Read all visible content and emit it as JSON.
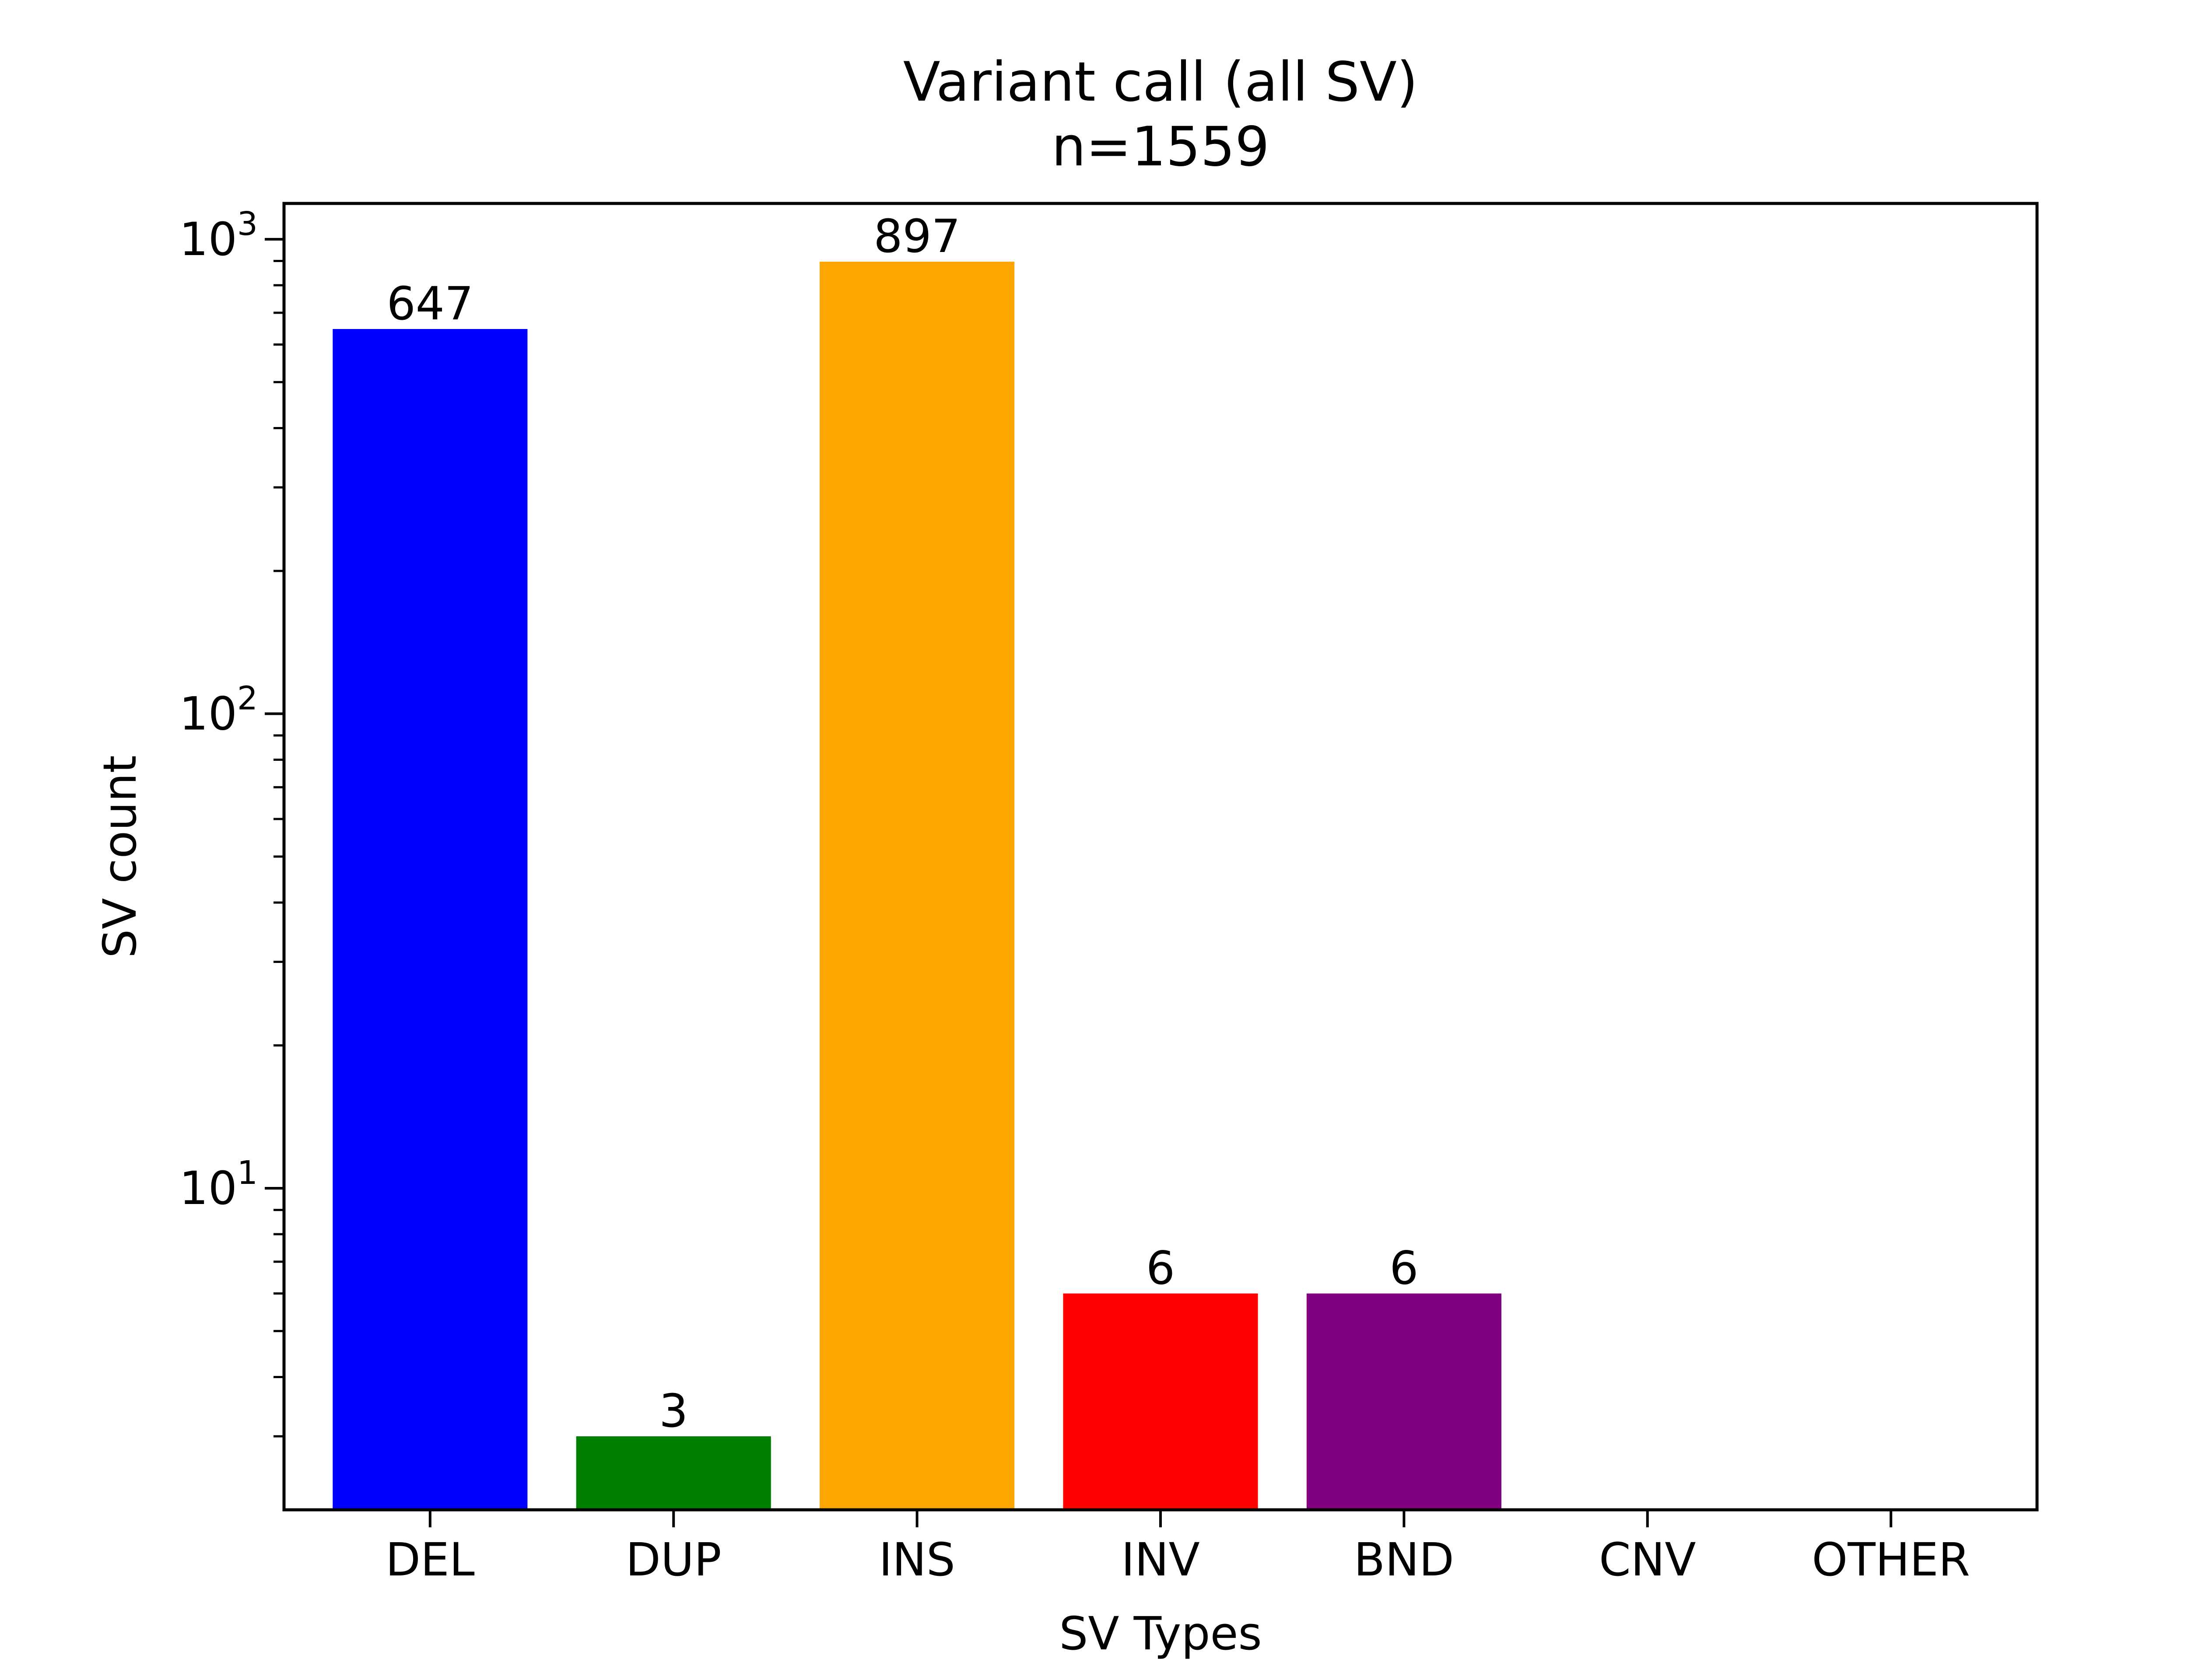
{
  "chart_data": {
    "type": "bar",
    "title": "Variant call (all SV)",
    "subtitle": "n=1559",
    "xlabel": "SV Types",
    "ylabel": "SV count",
    "yscale": "log",
    "ylim": [
      2.1,
      1190
    ],
    "grid": false,
    "categories": [
      "DEL",
      "DUP",
      "INS",
      "INV",
      "BND",
      "CNV",
      "OTHER"
    ],
    "values": [
      647,
      3,
      897,
      6,
      6,
      0,
      0
    ],
    "data_labels": [
      "647",
      "3",
      "897",
      "6",
      "6",
      "",
      ""
    ],
    "colors": [
      "#0000ff",
      "#008000",
      "#ffa500",
      "#ff0000",
      "#800080",
      "#00ffff",
      "#808080"
    ],
    "y_major_ticks": [
      {
        "value": 10,
        "base": "10",
        "exp": "1"
      },
      {
        "value": 100,
        "base": "10",
        "exp": "2"
      },
      {
        "value": 1000,
        "base": "10",
        "exp": "3"
      }
    ],
    "y_minor_ticks": [
      3,
      4,
      5,
      6,
      7,
      8,
      9,
      20,
      30,
      40,
      50,
      60,
      70,
      80,
      90,
      200,
      300,
      400,
      500,
      600,
      700,
      800,
      900
    ]
  }
}
